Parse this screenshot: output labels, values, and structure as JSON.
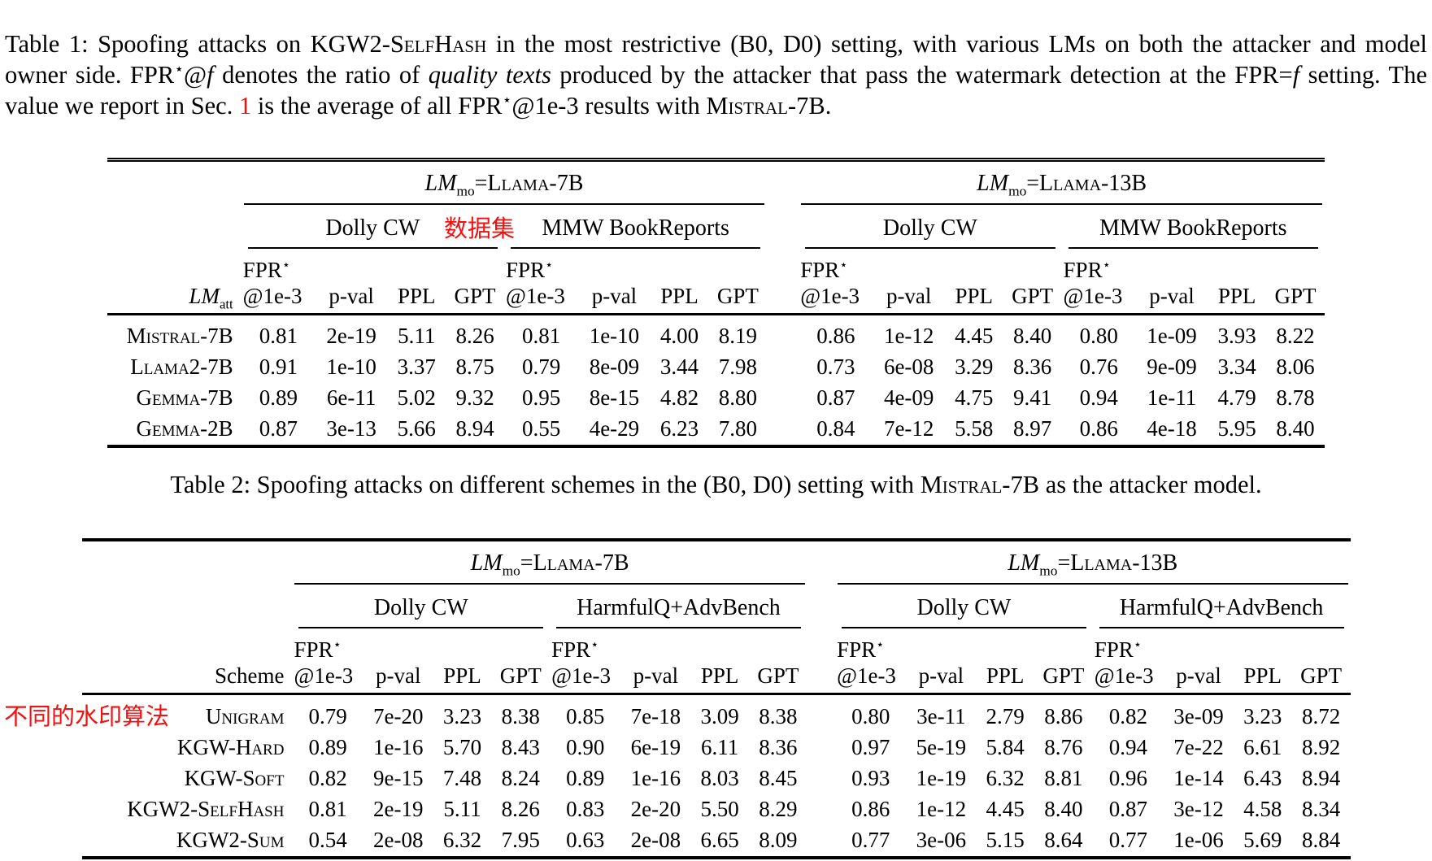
{
  "colors": {
    "annotation_red": "#f21010",
    "text": "#000000"
  },
  "caption1": {
    "segments": {
      "s1": "Table 1: Spoofing attacks on ",
      "s2": "KGW2-SelfHash",
      "s3": " in the most restrictive (B0, D0) setting, with various LMs on both the attacker and model owner side. FPR",
      "s4": "⋆",
      "s5": "@",
      "s6": "f",
      "s7": " denotes the ratio of ",
      "s8": "quality texts",
      "s9": " produced by the attacker that pass the watermark detection at the FPR=",
      "s10": "f",
      "s11": " setting. The value we report in Sec. ",
      "s12": "1",
      "s13": " is the average of all FPR",
      "s14": "⋆",
      "s15": "@1e-3 results with ",
      "s16": "Mistral-7B",
      "s17": "."
    }
  },
  "caption2": {
    "segments": {
      "s1": "Table 2: Spoofing attacks on different schemes in the (B0, D0) setting with ",
      "s2": "Mistral-7B",
      "s3": " as the attacker model."
    }
  },
  "annotations": {
    "dataset_label": "数据集",
    "watermark_label": "不同的水印算法"
  },
  "lm": {
    "italic": "LM",
    "sub_mo": "mo",
    "sub_att": "att",
    "eq": "="
  },
  "metric_header": {
    "fpr": "FPR",
    "star": "⋆",
    "at": "@1e-3",
    "pval": "p-val",
    "ppl": "PPL",
    "gpt": "GPT"
  },
  "table1": {
    "groups": [
      {
        "model": "Llama-7B",
        "datasets": [
          "Dolly CW",
          "MMW BookReports"
        ]
      },
      {
        "model": "Llama-13B",
        "datasets": [
          "Dolly CW",
          "MMW BookReports"
        ]
      }
    ],
    "rows": [
      {
        "label": "Mistral-7B",
        "values": [
          "0.81",
          "2e-19",
          "5.11",
          "8.26",
          "0.81",
          "1e-10",
          "4.00",
          "8.19",
          "0.86",
          "1e-12",
          "4.45",
          "8.40",
          "0.80",
          "1e-09",
          "3.93",
          "8.22"
        ]
      },
      {
        "label": "Llama2-7B",
        "values": [
          "0.91",
          "1e-10",
          "3.37",
          "8.75",
          "0.79",
          "8e-09",
          "3.44",
          "7.98",
          "0.73",
          "6e-08",
          "3.29",
          "8.36",
          "0.76",
          "9e-09",
          "3.34",
          "8.06"
        ]
      },
      {
        "label": "Gemma-7B",
        "values": [
          "0.89",
          "6e-11",
          "5.02",
          "9.32",
          "0.95",
          "8e-15",
          "4.82",
          "8.80",
          "0.87",
          "4e-09",
          "4.75",
          "9.41",
          "0.94",
          "1e-11",
          "4.79",
          "8.78"
        ]
      },
      {
        "label": "Gemma-2B",
        "values": [
          "0.87",
          "3e-13",
          "5.66",
          "8.94",
          "0.55",
          "4e-29",
          "6.23",
          "7.80",
          "0.84",
          "7e-12",
          "5.58",
          "8.97",
          "0.86",
          "4e-18",
          "5.95",
          "8.40"
        ]
      }
    ]
  },
  "table2": {
    "row_header": "Scheme",
    "groups": [
      {
        "model": "Llama-7B",
        "datasets": [
          "Dolly CW",
          "HarmfulQ+AdvBench"
        ]
      },
      {
        "model": "Llama-13B",
        "datasets": [
          "Dolly CW",
          "HarmfulQ+AdvBench"
        ]
      }
    ],
    "rows": [
      {
        "label": "Unigram",
        "values": [
          "0.79",
          "7e-20",
          "3.23",
          "8.38",
          "0.85",
          "7e-18",
          "3.09",
          "8.38",
          "0.80",
          "3e-11",
          "2.79",
          "8.86",
          "0.82",
          "3e-09",
          "3.23",
          "8.72"
        ]
      },
      {
        "label": "KGW-Hard",
        "values": [
          "0.89",
          "1e-16",
          "5.70",
          "8.43",
          "0.90",
          "6e-19",
          "6.11",
          "8.36",
          "0.97",
          "5e-19",
          "5.84",
          "8.76",
          "0.94",
          "7e-22",
          "6.61",
          "8.92"
        ]
      },
      {
        "label": "KGW-Soft",
        "values": [
          "0.82",
          "9e-15",
          "7.48",
          "8.24",
          "0.89",
          "1e-16",
          "8.03",
          "8.45",
          "0.93",
          "1e-19",
          "6.32",
          "8.81",
          "0.96",
          "1e-14",
          "6.43",
          "8.94"
        ]
      },
      {
        "label": "KGW2-SelfHash",
        "values": [
          "0.81",
          "2e-19",
          "5.11",
          "8.26",
          "0.83",
          "2e-20",
          "5.50",
          "8.29",
          "0.86",
          "1e-12",
          "4.45",
          "8.40",
          "0.87",
          "3e-12",
          "4.58",
          "8.34"
        ]
      },
      {
        "label": "KGW2-Sum",
        "values": [
          "0.54",
          "2e-08",
          "6.32",
          "7.95",
          "0.63",
          "2e-08",
          "6.65",
          "8.09",
          "0.77",
          "3e-06",
          "5.15",
          "8.64",
          "0.77",
          "1e-06",
          "5.69",
          "8.84"
        ]
      }
    ]
  }
}
